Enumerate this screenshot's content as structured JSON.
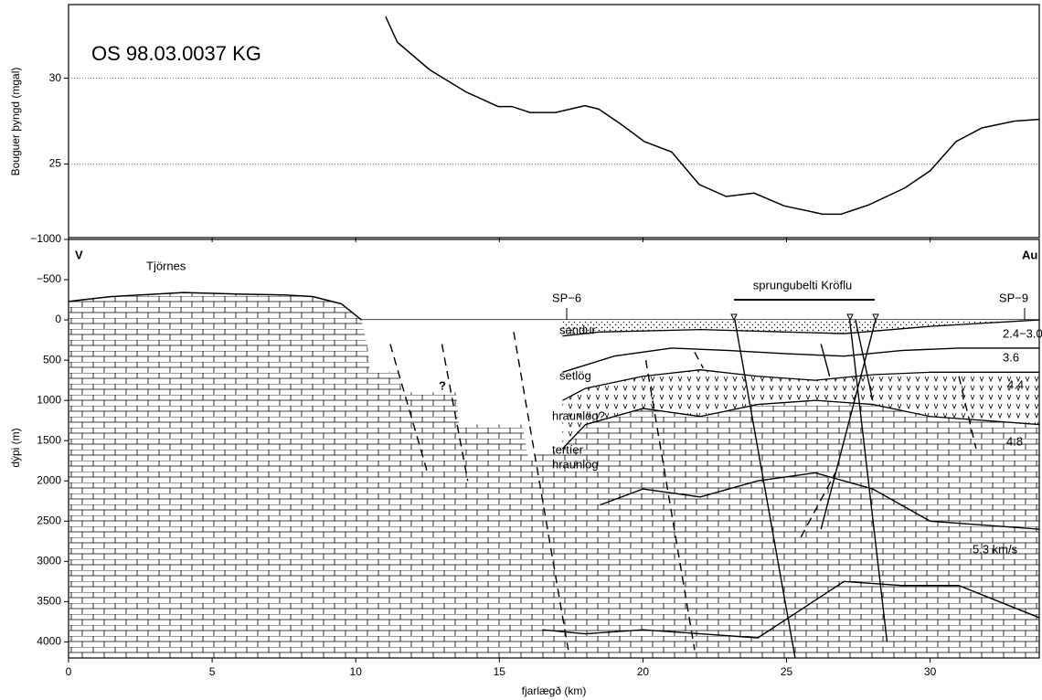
{
  "chart_data": [
    {
      "type": "line",
      "title": "OS 98.03.0037 KG",
      "y_label": "Bouguer þyngd (mgal)",
      "x": [
        11.04,
        11.45,
        12.57,
        13.84,
        14.96,
        15.44,
        16.07,
        16.96,
        17.98,
        18.46,
        19.25,
        20.05,
        21.0,
        21.96,
        22.9,
        23.87,
        24.92,
        26.26,
        26.9,
        27.85,
        29.12,
        30.0,
        30.9,
        31.8,
        32.94,
        33.8
      ],
      "values": [
        33.6,
        32.1,
        30.5,
        29.2,
        28.35,
        28.35,
        28.0,
        28.0,
        28.4,
        28.2,
        27.3,
        26.3,
        25.7,
        23.8,
        23.1,
        23.3,
        22.55,
        22.07,
        22.07,
        22.6,
        23.6,
        24.6,
        26.3,
        27.1,
        27.5,
        27.6
      ],
      "color": "#000000",
      "xlim": [
        0,
        33.8
      ],
      "xticks": [
        0,
        5,
        10,
        15,
        20,
        25,
        30
      ],
      "ylim": [
        20.7,
        34.3
      ],
      "yticks": [
        25,
        30
      ],
      "grid": true
    },
    {
      "type": "section",
      "x_label": "fjarlægð (km)",
      "y_label": "dýpi (m)",
      "xlim": [
        0,
        33.8
      ],
      "xticks": [
        0,
        5,
        10,
        15,
        20,
        25,
        30
      ],
      "ylim": [
        -1000,
        4200
      ],
      "y_inverted": true,
      "yticks": [
        {
          "value": -1000,
          "label": "−1000"
        },
        {
          "value": -500,
          "label": "−500"
        },
        0,
        500,
        1000,
        1500,
        2000,
        2500,
        3000,
        3500,
        4000
      ],
      "annotations": [
        "V",
        "Au",
        "Tjörnes",
        "SP−6",
        "SP−9",
        "sprungubelti Kröflu",
        "sandur",
        "setlög",
        "hraunlög?",
        "tertíer",
        "hraunlög",
        "?",
        "2.4−3.0",
        "3.6",
        "4.4",
        "4.8",
        "5.3 km/s"
      ],
      "series": [
        {
          "style": "surface",
          "x": [
            0,
            0.5,
            1.5,
            3,
            4,
            6,
            7.5,
            8.5,
            9.5,
            10.2,
            33.8
          ],
          "values": [
            -230,
            -250,
            -290,
            -320,
            -340,
            -320,
            -310,
            -290,
            -200,
            0,
            0
          ]
        },
        {
          "style": "void",
          "x": [
            10.2,
            10.4,
            10.5,
            11.5,
            11.6,
            13.5,
            13.6,
            15.8,
            16.0,
            17.2,
            18,
            20,
            22,
            24,
            26,
            28,
            30,
            33.8,
            33.8
          ],
          "values": [
            0,
            300,
            650,
            650,
            900,
            900,
            1300,
            1300,
            1700,
            1600,
            1300,
            1100,
            1200,
            1050,
            1000,
            1050,
            1200,
            1300,
            0
          ]
        },
        {
          "style": "dots",
          "x": [
            17.2,
            18.5,
            22,
            25,
            27,
            30,
            33.8
          ],
          "values": [
            200,
            150,
            120,
            150,
            170,
            80,
            0
          ]
        },
        {
          "style": "line",
          "x": [
            17.2,
            19,
            21,
            23,
            25,
            27,
            29,
            31,
            33.8
          ],
          "values": [
            650,
            450,
            350,
            380,
            420,
            450,
            380,
            350,
            350
          ]
        },
        {
          "style": "lava",
          "x": [
            17.2,
            18,
            20,
            22,
            24,
            26,
            28,
            30,
            33.8
          ],
          "values": [
            1000,
            850,
            700,
            620,
            700,
            750,
            680,
            650,
            650
          ],
          "base": [
            1600,
            1300,
            1100,
            1200,
            1050,
            1000,
            1050,
            1200,
            1300
          ]
        },
        {
          "style": "line",
          "x": [
            18.5,
            20,
            22,
            24,
            26,
            28,
            30,
            33.8
          ],
          "values": [
            2300,
            2100,
            2200,
            2000,
            1900,
            2100,
            2500,
            2600
          ]
        },
        {
          "style": "line",
          "x": [
            16.5,
            18,
            20,
            22,
            24,
            25.5,
            27,
            29,
            31,
            33.8
          ],
          "values": [
            3850,
            3900,
            3850,
            3900,
            3950,
            3600,
            3250,
            3300,
            3300,
            3700
          ]
        },
        {
          "style": "dash",
          "x": [
            11.2,
            12.5
          ],
          "values": [
            300,
            1900
          ]
        },
        {
          "style": "dash",
          "x": [
            13.0,
            13.9
          ],
          "values": [
            300,
            2000
          ]
        },
        {
          "style": "dash",
          "x": [
            15.5,
            17.4
          ],
          "values": [
            150,
            4100
          ]
        },
        {
          "style": "dash",
          "x": [
            20.1,
            21.8
          ],
          "values": [
            500,
            4100
          ]
        },
        {
          "style": "dash",
          "x": [
            21.8,
            22.1
          ],
          "values": [
            400,
            600
          ]
        },
        {
          "style": "dash",
          "x": [
            25.5,
            26.7
          ],
          "values": [
            2700,
            1900
          ]
        },
        {
          "style": "dash",
          "x": [
            31,
            31.6
          ],
          "values": [
            700,
            1600
          ]
        },
        {
          "style": "line",
          "x": [
            23.2,
            25.3
          ],
          "values": [
            0,
            4200
          ]
        },
        {
          "style": "line",
          "x": [
            27.2,
            28.5
          ],
          "values": [
            0,
            4000
          ]
        },
        {
          "style": "line",
          "x": [
            27.4,
            28
          ],
          "values": [
            0,
            1000
          ]
        },
        {
          "style": "line",
          "x": [
            28.1,
            26.2
          ],
          "values": [
            0,
            2600
          ]
        },
        {
          "style": "line",
          "x": [
            26.2,
            26.5
          ],
          "values": [
            300,
            700
          ]
        }
      ]
    }
  ]
}
